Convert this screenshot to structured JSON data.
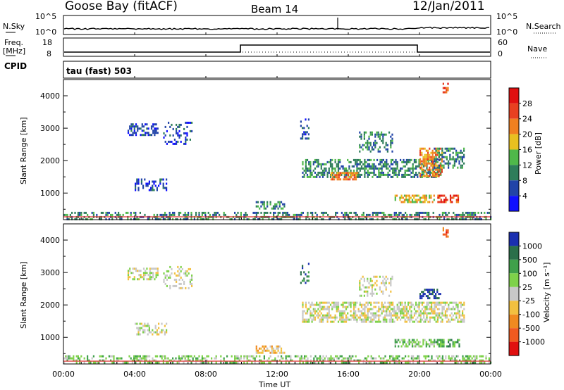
{
  "header": {
    "station": "Goose Bay (fitACF)",
    "beam": "Beam 14",
    "date": "12/Jan/2011"
  },
  "noise_panel": {
    "left_label": "N.Sky",
    "right_label": "N.Search",
    "left_ticks": [
      "10^5",
      "10^0"
    ],
    "right_ticks": [
      "10^5",
      "10^0"
    ]
  },
  "freq_panel": {
    "left_label_top": "Freq.",
    "left_label_unit": "[MHz]",
    "right_label": "Nave",
    "left_ticks": [
      "18",
      "8"
    ],
    "right_ticks": [
      "60",
      "0"
    ]
  },
  "cpid": {
    "label": "CPID",
    "text": "tau (fast) 503"
  },
  "x_axis": {
    "label": "Time UT",
    "ticks": [
      "00:00",
      "04:00",
      "08:00",
      "12:00",
      "16:00",
      "20:00",
      "00:00"
    ]
  },
  "chart_data": [
    {
      "type": "heatmap",
      "title": "",
      "ylabel": "Slant Range [km]",
      "yticks": [
        "1000",
        "2000",
        "3000",
        "4000"
      ],
      "ylim": [
        180,
        4500
      ],
      "xlim": [
        0,
        24
      ],
      "colorbar": {
        "label": "Power [dB]",
        "ticks": [
          "4",
          "8",
          "12",
          "16",
          "20",
          "24",
          "28"
        ],
        "colors": [
          "#1010ff",
          "#2244a8",
          "#2e7d5a",
          "#4fb84a",
          "#e8c020",
          "#f08020",
          "#e84020",
          "#e01010"
        ]
      },
      "regions": [
        {
          "t0": 0.0,
          "t1": 24.0,
          "r0": 190,
          "r1": 420,
          "level": 2,
          "density": 0.45
        },
        {
          "t0": 3.6,
          "t1": 5.3,
          "r0": 2800,
          "r1": 3150,
          "level": 1,
          "density": 0.5
        },
        {
          "t0": 5.6,
          "t1": 7.2,
          "r0": 2500,
          "r1": 3200,
          "level": 1,
          "density": 0.3
        },
        {
          "t0": 4.0,
          "t1": 5.8,
          "r0": 1100,
          "r1": 1450,
          "level": 1,
          "density": 0.4
        },
        {
          "t0": 10.8,
          "t1": 12.4,
          "r0": 550,
          "r1": 750,
          "level": 2,
          "density": 0.6
        },
        {
          "t0": 13.4,
          "t1": 21.2,
          "r0": 1500,
          "r1": 2050,
          "level": 2,
          "density": 0.55
        },
        {
          "t0": 15.0,
          "t1": 16.5,
          "r0": 1400,
          "r1": 1650,
          "level": 5,
          "density": 0.7
        },
        {
          "t0": 16.6,
          "t1": 18.5,
          "r0": 2300,
          "r1": 2900,
          "level": 2,
          "density": 0.35
        },
        {
          "t0": 18.6,
          "t1": 20.8,
          "r0": 700,
          "r1": 950,
          "level": 4,
          "density": 0.6
        },
        {
          "t0": 20.0,
          "t1": 21.3,
          "r0": 1500,
          "r1": 2400,
          "level": 5,
          "density": 0.55
        },
        {
          "t0": 20.8,
          "t1": 22.5,
          "r0": 1800,
          "r1": 2400,
          "level": 2,
          "density": 0.5
        },
        {
          "t0": 21.0,
          "t1": 22.2,
          "r0": 700,
          "r1": 950,
          "level": 6,
          "density": 0.6
        },
        {
          "t0": 13.3,
          "t1": 13.8,
          "r0": 2700,
          "r1": 3300,
          "level": 1,
          "density": 0.35
        },
        {
          "t0": 21.3,
          "t1": 21.6,
          "r0": 4100,
          "r1": 4400,
          "level": 6,
          "density": 0.6
        }
      ]
    },
    {
      "type": "heatmap",
      "title": "",
      "ylabel": "Slant Range [km]",
      "yticks": [
        "1000",
        "2000",
        "3000",
        "4000"
      ],
      "ylim": [
        180,
        4500
      ],
      "xlim": [
        0,
        24
      ],
      "colorbar": {
        "label": "Velocity [m s⁻¹]",
        "ticks": [
          "1000",
          "500",
          "100",
          "25",
          "-25",
          "-100",
          "-500",
          "-1000"
        ],
        "colors": [
          "#1a2fb0",
          "#2a6f4a",
          "#3fa04a",
          "#7ed24a",
          "#c8c8c8",
          "#f2c040",
          "#f08a20",
          "#f05a20",
          "#e01010"
        ]
      },
      "regions": [
        {
          "t0": 0.0,
          "t1": 24.0,
          "r0": 190,
          "r1": 450,
          "level": 3,
          "density": 0.45
        },
        {
          "t0": 3.6,
          "t1": 5.3,
          "r0": 2800,
          "r1": 3150,
          "level": 4,
          "density": 0.5
        },
        {
          "t0": 5.6,
          "t1": 7.2,
          "r0": 2500,
          "r1": 3200,
          "level": 4,
          "density": 0.3
        },
        {
          "t0": 4.0,
          "t1": 5.8,
          "r0": 1100,
          "r1": 1450,
          "level": 4,
          "density": 0.4
        },
        {
          "t0": 10.8,
          "t1": 12.4,
          "r0": 550,
          "r1": 750,
          "level": 5,
          "density": 0.6
        },
        {
          "t0": 13.4,
          "t1": 22.5,
          "r0": 1500,
          "r1": 2100,
          "level": 4,
          "density": 0.6
        },
        {
          "t0": 16.6,
          "t1": 18.5,
          "r0": 2300,
          "r1": 2900,
          "level": 4,
          "density": 0.35
        },
        {
          "t0": 18.6,
          "t1": 20.8,
          "r0": 700,
          "r1": 950,
          "level": 3,
          "density": 0.6
        },
        {
          "t0": 20.0,
          "t1": 21.2,
          "r0": 2200,
          "r1": 2500,
          "level": 0,
          "density": 0.55
        },
        {
          "t0": 20.8,
          "t1": 22.2,
          "r0": 700,
          "r1": 950,
          "level": 2,
          "density": 0.55
        },
        {
          "t0": 13.3,
          "t1": 13.8,
          "r0": 2700,
          "r1": 3300,
          "level": 1,
          "density": 0.35
        },
        {
          "t0": 21.3,
          "t1": 21.6,
          "r0": 4100,
          "r1": 4400,
          "level": 7,
          "density": 0.6
        }
      ]
    }
  ]
}
